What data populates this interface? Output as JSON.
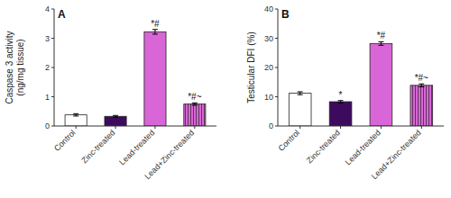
{
  "chart_data": [
    {
      "type": "bar",
      "title": "A",
      "categories": [
        "Control",
        "Zinc-treated",
        "Lead-treated",
        "Lead+Zinc-treated"
      ],
      "values": [
        0.38,
        0.33,
        3.22,
        0.75
      ],
      "errors": [
        0.04,
        0.03,
        0.08,
        0.04
      ],
      "colors": [
        "white",
        "#3d0b5e",
        "#d966d6",
        "#d966d6"
      ],
      "annotations": [
        null,
        null,
        "*#",
        "*#~"
      ],
      "ylabel": "Caspase 3 activity\n(ng/mg tissue)",
      "ylim": [
        0,
        4
      ],
      "yticks": [
        0,
        1,
        2,
        3,
        4
      ],
      "grid": false
    },
    {
      "type": "bar",
      "title": "B",
      "categories": [
        "Control",
        "Zinc-treated",
        "Lead-treated",
        "Lead+Zinc-treated"
      ],
      "values": [
        11.2,
        8.3,
        28.2,
        13.9
      ],
      "errors": [
        0.5,
        0.4,
        0.6,
        0.5
      ],
      "colors": [
        "white",
        "#3d0b5e",
        "#d966d6",
        "#d966d6"
      ],
      "annotations": [
        null,
        "*",
        "*#",
        "*#~"
      ],
      "ylabel": "Testicular DFI (%)",
      "ylim": [
        0,
        40
      ],
      "yticks": [
        0,
        10,
        20,
        30,
        40
      ],
      "grid": false
    }
  ]
}
